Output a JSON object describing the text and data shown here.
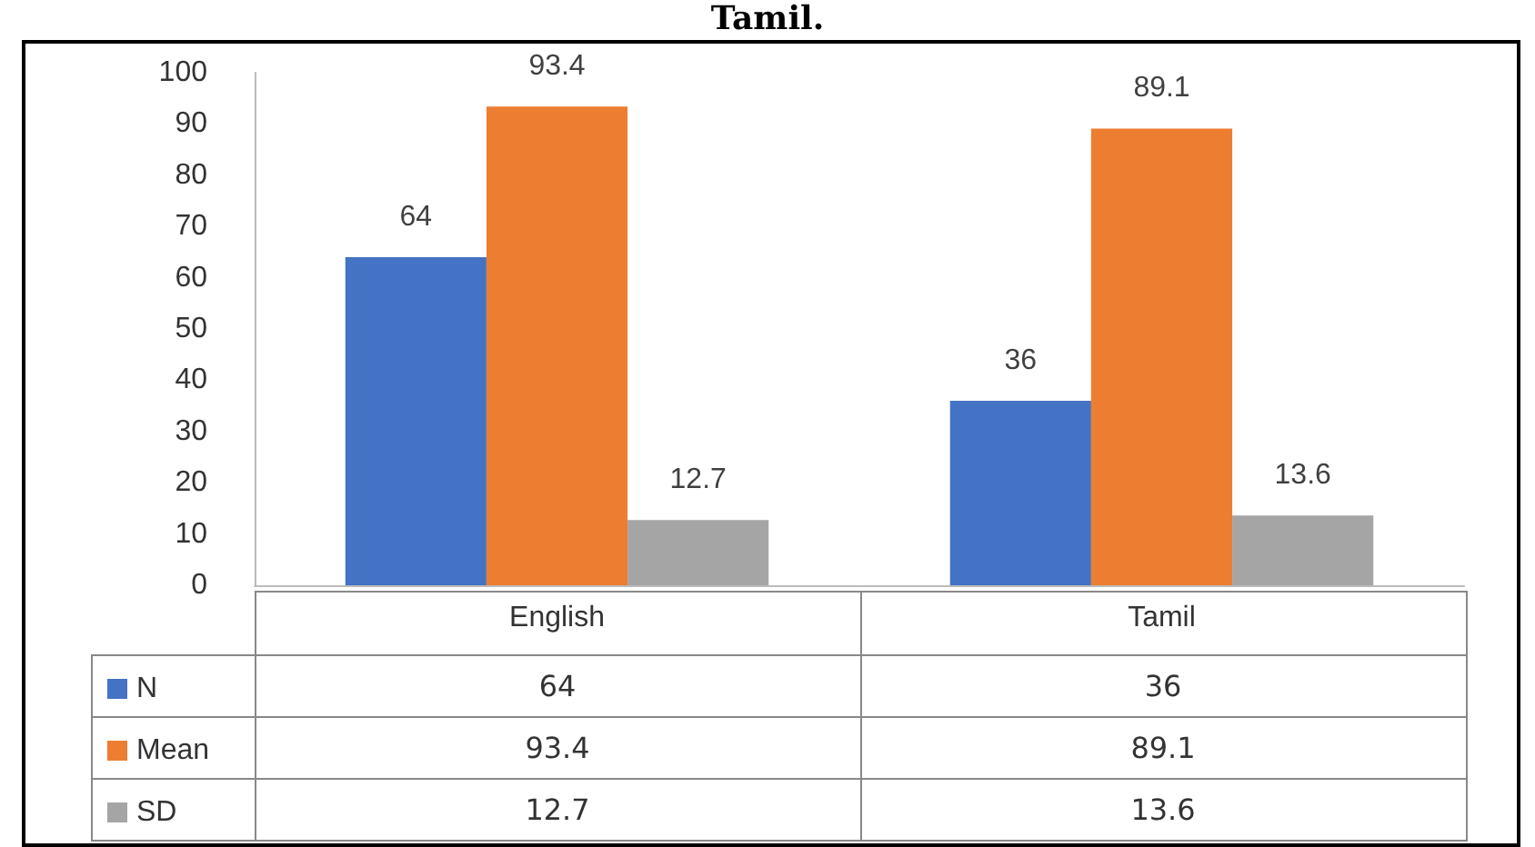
{
  "chart_data": {
    "type": "bar",
    "title": "Tamil.",
    "categories": [
      "English",
      "Tamil"
    ],
    "series": [
      {
        "name": "N",
        "color": "#4472c4",
        "values": [
          64,
          36
        ],
        "value_labels": [
          "64",
          "36"
        ]
      },
      {
        "name": "Mean",
        "color": "#ed7d31",
        "values": [
          93.4,
          89.1
        ],
        "value_labels": [
          "93.4",
          "89.1"
        ]
      },
      {
        "name": "SD",
        "color": "#a5a5a5",
        "values": [
          12.7,
          13.6
        ],
        "value_labels": [
          "12.7",
          "13.6"
        ]
      }
    ],
    "ylim": [
      0,
      100
    ],
    "yticks": [
      0,
      10,
      20,
      30,
      40,
      50,
      60,
      70,
      80,
      90,
      100
    ],
    "annotations": [
      "64",
      "36",
      "93.4",
      "89.1",
      "12.7",
      "13.6"
    ],
    "grid": false,
    "legend": "bottom",
    "data_labels": true
  }
}
